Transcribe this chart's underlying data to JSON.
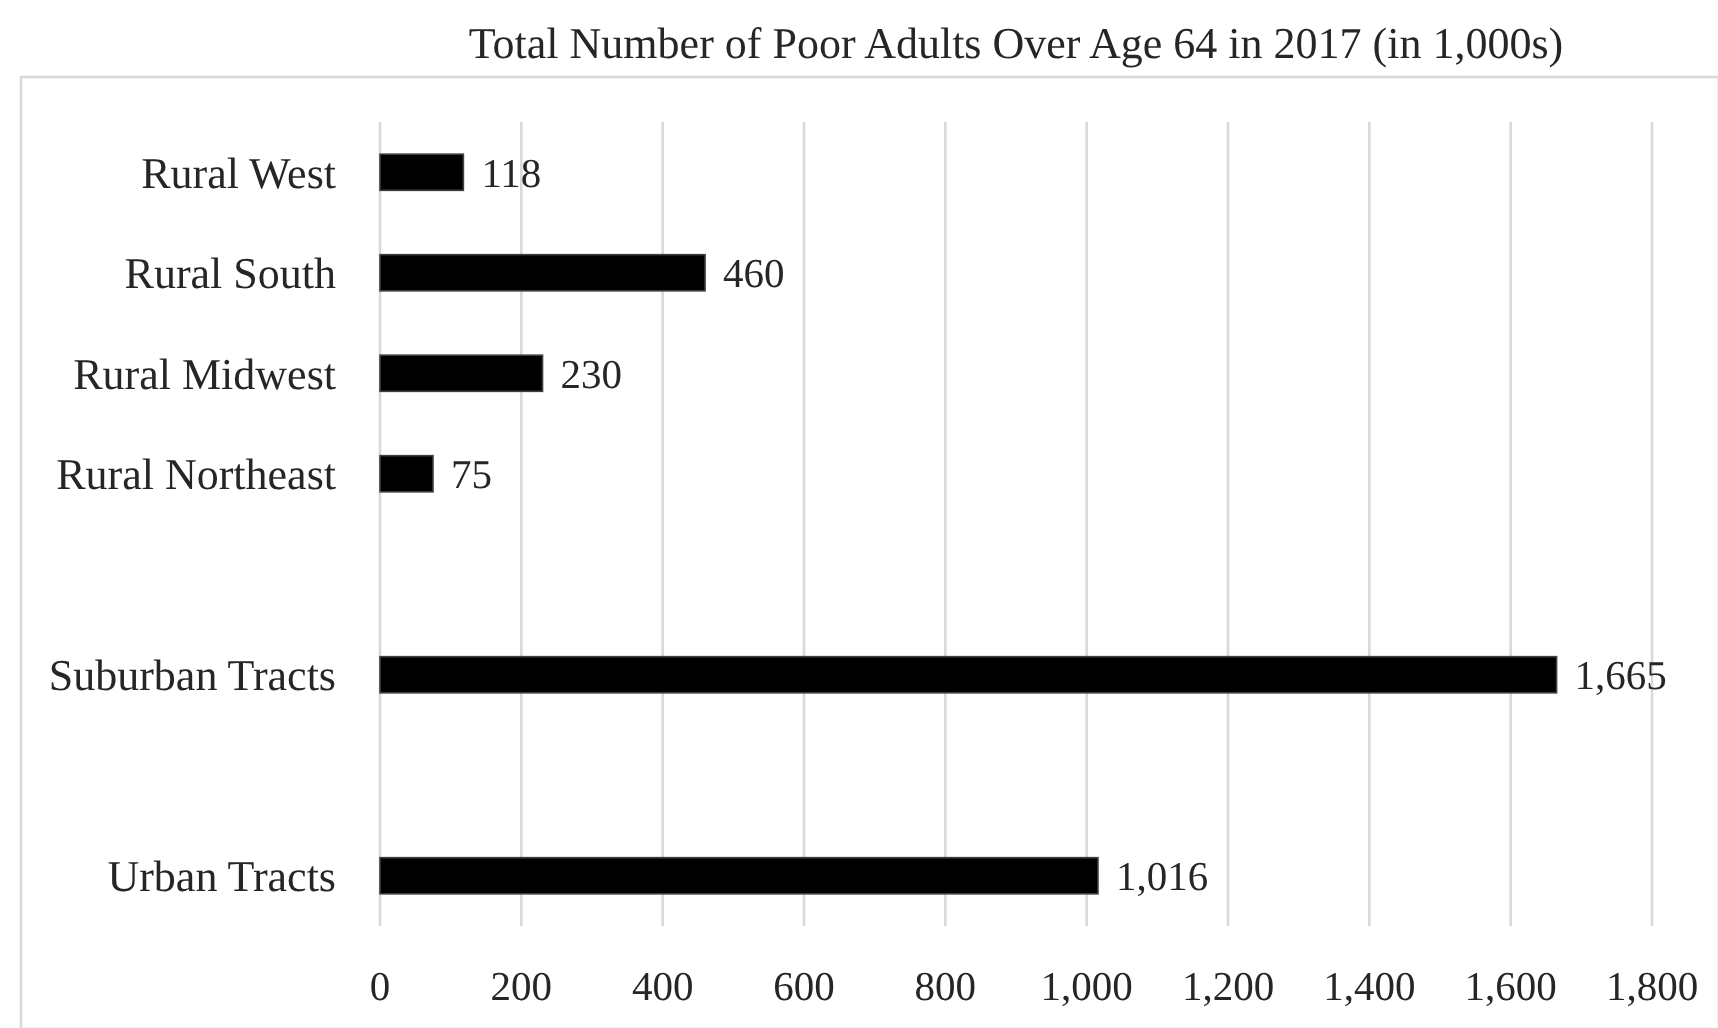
{
  "chart_data": {
    "type": "bar",
    "orientation": "horizontal",
    "title": "Total Number of Poor Adults Over Age 64 in 2017 (in 1,000s)",
    "categories": [
      "Rural West",
      "Rural South",
      "Rural Midwest",
      "Rural Northeast",
      null,
      "Suburban Tracts",
      null,
      "Urban Tracts"
    ],
    "values": [
      118,
      460,
      230,
      75,
      null,
      1665,
      null,
      1016
    ],
    "value_labels": [
      "118",
      "460",
      "230",
      "75",
      null,
      "1,665",
      null,
      "1,016"
    ],
    "color": "#000000",
    "xlim": [
      0,
      1800
    ],
    "xticks": [
      0,
      200,
      400,
      600,
      800,
      {
        "value": 1000,
        "label": "1,000"
      },
      {
        "value": 1200,
        "label": "1,200"
      },
      {
        "value": 1400,
        "label": "1,400"
      },
      {
        "value": 1600,
        "label": "1,600"
      },
      {
        "value": 1800,
        "label": "1,800"
      }
    ],
    "grid": "x"
  }
}
